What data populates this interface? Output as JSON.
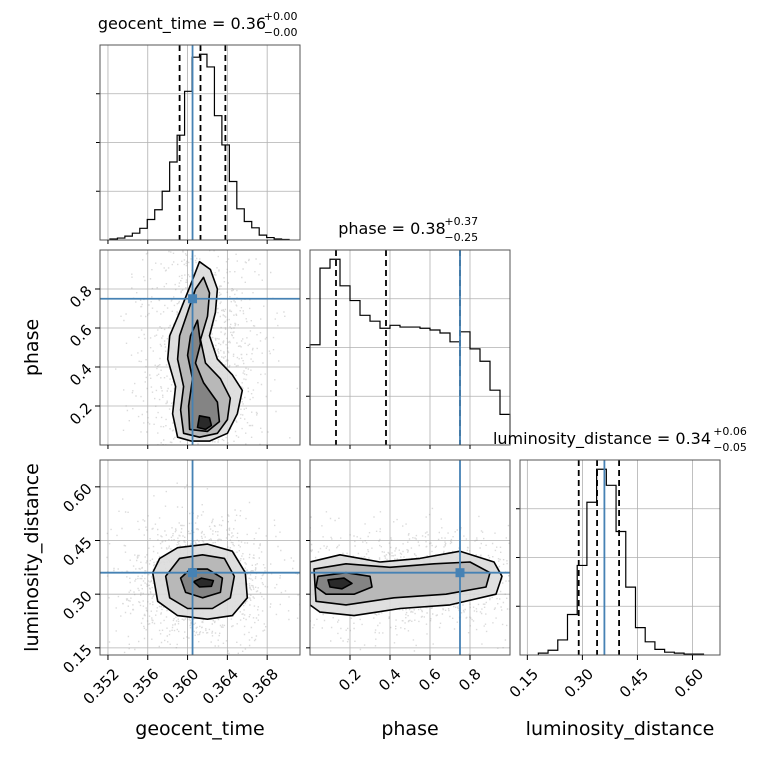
{
  "chart_data": {
    "type": "corner",
    "parameters": [
      "geocent_time",
      "phase",
      "luminosity_distance"
    ],
    "truths": {
      "geocent_time": 0.3605,
      "phase": 0.75,
      "luminosity_distance": 0.36
    },
    "colors": {
      "truth": "#4682b4",
      "hist": "#000000",
      "grid": "#b0b0b0"
    },
    "grid": true,
    "titles": [
      {
        "param": "geocent_time",
        "text": "geocent_time = 0.36",
        "sup": "+0.00",
        "sub": "−0.00"
      },
      {
        "param": "phase",
        "text": "phase = 0.38",
        "sup": "+0.37",
        "sub": "−0.25"
      },
      {
        "param": "luminosity_distance",
        "text": "luminosity_distance = 0.34",
        "sup": "+0.06",
        "sub": "−0.05"
      }
    ],
    "axes": {
      "geocent_time": {
        "range": [
          0.3512,
          0.3713
        ],
        "ticks": [
          0.352,
          0.356,
          0.36,
          0.364,
          0.368
        ],
        "ticklabels": [
          "0.352",
          "0.356",
          "0.360",
          "0.364",
          "0.368"
        ],
        "label": "geocent_time"
      },
      "phase": {
        "range": [
          0.0,
          1.0
        ],
        "ticks": [
          0.2,
          0.4,
          0.6,
          0.8
        ],
        "ticklabels": [
          "0.2",
          "0.4",
          "0.6",
          "0.8"
        ],
        "label": "phase"
      },
      "luminosity_distance": {
        "range": [
          0.13,
          0.675
        ],
        "ticks": [
          0.15,
          0.3,
          0.45,
          0.6
        ],
        "ticklabels": [
          "0.15",
          "0.30",
          "0.45",
          "0.60"
        ],
        "label": "luminosity_distance"
      }
    },
    "quantiles": {
      "geocent_time": [
        0.3592,
        0.3613,
        0.3638
      ],
      "phase": [
        0.13,
        0.38,
        0.75
      ],
      "luminosity_distance": [
        0.29,
        0.34,
        0.4
      ]
    },
    "histograms": {
      "geocent_time": {
        "edges_range": [
          0.3522,
          0.3702
        ],
        "counts": [
          2,
          4,
          8,
          14,
          24,
          42,
          62,
          100,
          160,
          215,
          305,
          375,
          381,
          355,
          255,
          195,
          120,
          64,
          38,
          25,
          10,
          5,
          2,
          1
        ]
      },
      "phase": {
        "edges_range": [
          0.0,
          1.0
        ],
        "counts": [
          170,
          300,
          315,
          270,
          245,
          220,
          210,
          198,
          203,
          200,
          200,
          198,
          195,
          190,
          175,
          192,
          163,
          142,
          93,
          52
        ]
      },
      "luminosity_distance": {
        "edges_range": [
          0.18,
          0.63
        ],
        "counts": [
          2,
          5,
          16,
          43,
          95,
          162,
          197,
          180,
          131,
          72,
          29,
          14,
          6,
          3,
          2,
          1,
          1
        ]
      }
    },
    "pairs": [
      {
        "x": "geocent_time",
        "y": "phase",
        "center": [
          0.3617,
          0.12
        ],
        "contours": [
          [
            [
              0.359,
              0.04
            ],
            [
              0.3585,
              0.16
            ],
            [
              0.3588,
              0.3
            ],
            [
              0.358,
              0.44
            ],
            [
              0.3582,
              0.56
            ],
            [
              0.3592,
              0.68
            ],
            [
              0.3603,
              0.82
            ],
            [
              0.3612,
              0.94
            ],
            [
              0.3623,
              0.9
            ],
            [
              0.363,
              0.8
            ],
            [
              0.3628,
              0.68
            ],
            [
              0.3622,
              0.56
            ],
            [
              0.363,
              0.44
            ],
            [
              0.3645,
              0.36
            ],
            [
              0.3655,
              0.28
            ],
            [
              0.365,
              0.16
            ],
            [
              0.364,
              0.06
            ],
            [
              0.3622,
              0.02
            ],
            [
              0.3604,
              0.02
            ]
          ],
          [
            [
              0.3596,
              0.06
            ],
            [
              0.3593,
              0.18
            ],
            [
              0.3596,
              0.3
            ],
            [
              0.359,
              0.44
            ],
            [
              0.3592,
              0.56
            ],
            [
              0.36,
              0.68
            ],
            [
              0.3608,
              0.8
            ],
            [
              0.3616,
              0.86
            ],
            [
              0.3622,
              0.78
            ],
            [
              0.362,
              0.66
            ],
            [
              0.3613,
              0.54
            ],
            [
              0.3618,
              0.42
            ],
            [
              0.3633,
              0.34
            ],
            [
              0.3643,
              0.24
            ],
            [
              0.364,
              0.13
            ],
            [
              0.363,
              0.06
            ],
            [
              0.3612,
              0.04
            ]
          ],
          [
            [
              0.3602,
              0.08
            ],
            [
              0.3601,
              0.2
            ],
            [
              0.3605,
              0.34
            ],
            [
              0.36,
              0.46
            ],
            [
              0.3603,
              0.56
            ],
            [
              0.361,
              0.64
            ],
            [
              0.3613,
              0.52
            ],
            [
              0.3608,
              0.42
            ],
            [
              0.3616,
              0.32
            ],
            [
              0.363,
              0.22
            ],
            [
              0.3632,
              0.12
            ],
            [
              0.362,
              0.07
            ]
          ],
          [
            [
              0.361,
              0.09
            ],
            [
              0.3612,
              0.15
            ],
            [
              0.3622,
              0.14
            ],
            [
              0.3624,
              0.1
            ],
            [
              0.3618,
              0.08
            ]
          ]
        ]
      },
      {
        "x": "geocent_time",
        "y": "luminosity_distance",
        "center": [
          0.3617,
          0.33
        ],
        "contours": [
          [
            [
              0.3565,
              0.36
            ],
            [
              0.357,
              0.28
            ],
            [
              0.359,
              0.24
            ],
            [
              0.362,
              0.23
            ],
            [
              0.3645,
              0.24
            ],
            [
              0.366,
              0.29
            ],
            [
              0.3658,
              0.36
            ],
            [
              0.3645,
              0.42
            ],
            [
              0.362,
              0.44
            ],
            [
              0.359,
              0.43
            ],
            [
              0.3572,
              0.4
            ]
          ],
          [
            [
              0.3578,
              0.35
            ],
            [
              0.3582,
              0.29
            ],
            [
              0.36,
              0.26
            ],
            [
              0.3625,
              0.26
            ],
            [
              0.3643,
              0.29
            ],
            [
              0.3647,
              0.35
            ],
            [
              0.3637,
              0.4
            ],
            [
              0.3615,
              0.41
            ],
            [
              0.3592,
              0.4
            ]
          ],
          [
            [
              0.3593,
              0.345
            ],
            [
              0.3598,
              0.305
            ],
            [
              0.3615,
              0.29
            ],
            [
              0.3633,
              0.305
            ],
            [
              0.3635,
              0.345
            ],
            [
              0.362,
              0.37
            ],
            [
              0.3603,
              0.37
            ]
          ],
          [
            [
              0.3606,
              0.335
            ],
            [
              0.3612,
              0.32
            ],
            [
              0.3624,
              0.322
            ],
            [
              0.3626,
              0.338
            ],
            [
              0.3614,
              0.345
            ]
          ]
        ]
      },
      {
        "x": "phase",
        "y": "luminosity_distance",
        "center": [
          0.13,
          0.33
        ],
        "contours": [
          [
            [
              0.0,
              0.39
            ],
            [
              0.15,
              0.41
            ],
            [
              0.35,
              0.39
            ],
            [
              0.55,
              0.4
            ],
            [
              0.75,
              0.42
            ],
            [
              0.92,
              0.39
            ],
            [
              0.96,
              0.35
            ],
            [
              0.93,
              0.3
            ],
            [
              0.7,
              0.27
            ],
            [
              0.45,
              0.26
            ],
            [
              0.22,
              0.24
            ],
            [
              0.05,
              0.25
            ],
            [
              0.0,
              0.27
            ]
          ],
          [
            [
              0.02,
              0.37
            ],
            [
              0.18,
              0.385
            ],
            [
              0.4,
              0.375
            ],
            [
              0.62,
              0.385
            ],
            [
              0.8,
              0.39
            ],
            [
              0.9,
              0.36
            ],
            [
              0.88,
              0.32
            ],
            [
              0.68,
              0.3
            ],
            [
              0.42,
              0.29
            ],
            [
              0.18,
              0.27
            ],
            [
              0.03,
              0.28
            ]
          ],
          [
            [
              0.04,
              0.35
            ],
            [
              0.18,
              0.36
            ],
            [
              0.3,
              0.35
            ],
            [
              0.31,
              0.32
            ],
            [
              0.22,
              0.3
            ],
            [
              0.08,
              0.3
            ],
            [
              0.03,
              0.32
            ]
          ],
          [
            [
              0.09,
              0.34
            ],
            [
              0.17,
              0.345
            ],
            [
              0.21,
              0.33
            ],
            [
              0.16,
              0.315
            ],
            [
              0.1,
              0.32
            ]
          ]
        ]
      }
    ]
  }
}
